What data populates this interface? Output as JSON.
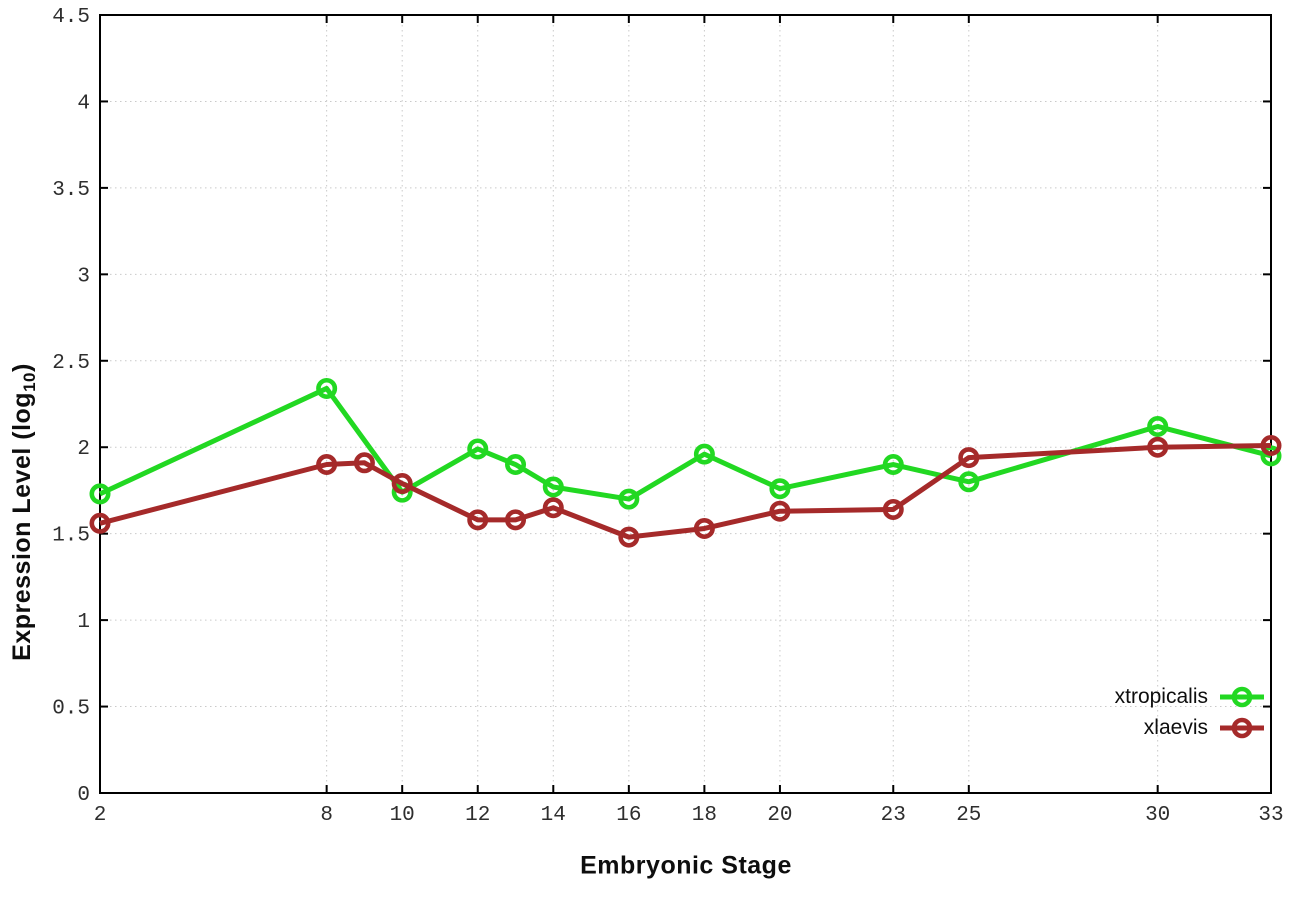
{
  "page": {
    "background": "#ffffff"
  },
  "chart_data": {
    "type": "line",
    "title": "",
    "xlabel": "Embryonic Stage",
    "ylabel": {
      "main": "Expression Level (log",
      "sub": "10",
      "end": ")"
    },
    "xlim": [
      2,
      33
    ],
    "ylim": [
      0,
      4.5
    ],
    "x_ticks": [
      2,
      8,
      10,
      12,
      14,
      16,
      18,
      20,
      23,
      25,
      30,
      33
    ],
    "y_ticks": [
      0,
      0.5,
      1,
      1.5,
      2,
      2.5,
      3,
      3.5,
      4,
      4.5
    ],
    "grid": true,
    "legend_position": "bottom-right",
    "axis_color": "#000000",
    "grid_color": "#c9c9c9",
    "tick_label_color": "#2e2e2e",
    "marker_style": "open-circle",
    "series": [
      {
        "name": "xtropicalis",
        "color": "#22d822",
        "x": [
          2,
          8,
          10,
          12,
          13,
          14,
          16,
          18,
          20,
          23,
          25,
          30,
          33
        ],
        "y": [
          1.73,
          2.34,
          1.74,
          1.99,
          1.9,
          1.77,
          1.7,
          1.96,
          1.76,
          1.9,
          1.8,
          2.12,
          1.95
        ]
      },
      {
        "name": "xlaevis",
        "color": "#a52a2a",
        "x": [
          2,
          8,
          9,
          10,
          12,
          13,
          14,
          16,
          18,
          20,
          23,
          25,
          30,
          33
        ],
        "y": [
          1.56,
          1.9,
          1.91,
          1.79,
          1.58,
          1.58,
          1.65,
          1.48,
          1.53,
          1.63,
          1.64,
          1.94,
          2.0,
          2.01
        ]
      }
    ]
  }
}
